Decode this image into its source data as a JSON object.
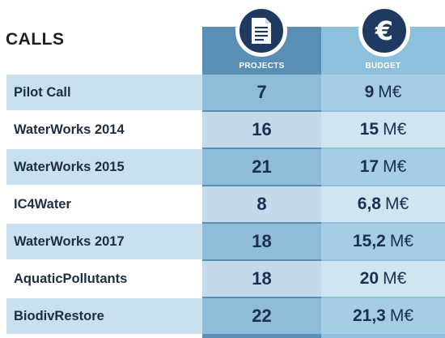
{
  "header": {
    "calls_label": "CALLS",
    "projects_label": "PROJECTS",
    "budget_label": "BUDGET",
    "projects_icon": "document-icon",
    "budget_icon": "euro-icon",
    "euro_symbol": "€"
  },
  "colors": {
    "dark_navy": "#1f3a60",
    "projects_header": "#5a8fb5",
    "budget_header": "#8dc0dc",
    "row_light": "#c9e0ee"
  },
  "rows": [
    {
      "call": "Pilot Call",
      "projects": "7",
      "budget_value": "9",
      "budget_unit": "M€"
    },
    {
      "call": "WaterWorks 2014",
      "projects": "16",
      "budget_value": "15",
      "budget_unit": "M€"
    },
    {
      "call": "WaterWorks 2015",
      "projects": "21",
      "budget_value": "17",
      "budget_unit": "M€"
    },
    {
      "call": "IC4Water",
      "projects": "8",
      "budget_value": "6,8",
      "budget_unit": "M€"
    },
    {
      "call": "WaterWorks 2017",
      "projects": "18",
      "budget_value": "15,2",
      "budget_unit": "M€"
    },
    {
      "call": "AquaticPollutants",
      "projects": "18",
      "budget_value": "20",
      "budget_unit": "M€"
    },
    {
      "call": "BiodivRestore",
      "projects": "22",
      "budget_value": "21,3",
      "budget_unit": "M€"
    }
  ]
}
